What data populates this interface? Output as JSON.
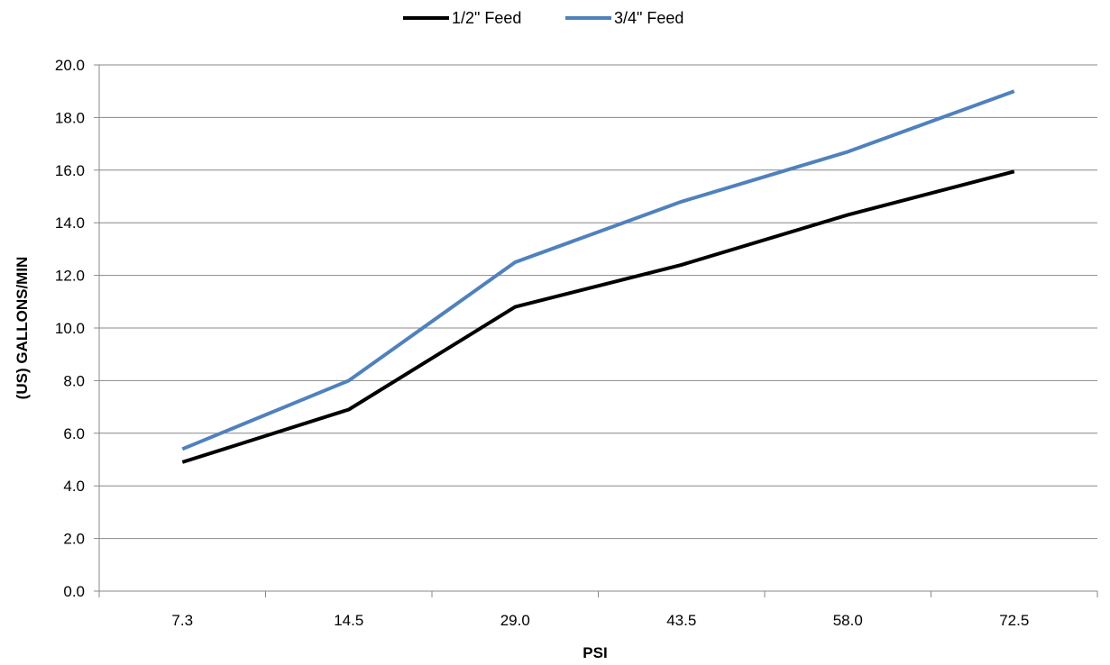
{
  "chart_data": {
    "type": "line",
    "title": "",
    "xlabel": "PSI",
    "ylabel": "(US) GALLONS/MIN",
    "categories": [
      "7.3",
      "14.5",
      "29.0",
      "43.5",
      "58.0",
      "72.5"
    ],
    "ylim": [
      0,
      20
    ],
    "ytick_step": 2,
    "ytick_labels": [
      "0.0",
      "2.0",
      "4.0",
      "6.0",
      "8.0",
      "10.0",
      "12.0",
      "14.0",
      "16.0",
      "18.0",
      "20.0"
    ],
    "grid": "horizontal",
    "legend_position": "top",
    "series": [
      {
        "name": "1/2\" Feed",
        "color": "#000000",
        "values": [
          4.9,
          6.9,
          10.8,
          12.4,
          14.3,
          15.95
        ]
      },
      {
        "name": "3/4\" Feed",
        "color": "#4F81BD",
        "values": [
          5.4,
          8.0,
          12.5,
          14.8,
          16.7,
          19.0
        ]
      }
    ]
  }
}
